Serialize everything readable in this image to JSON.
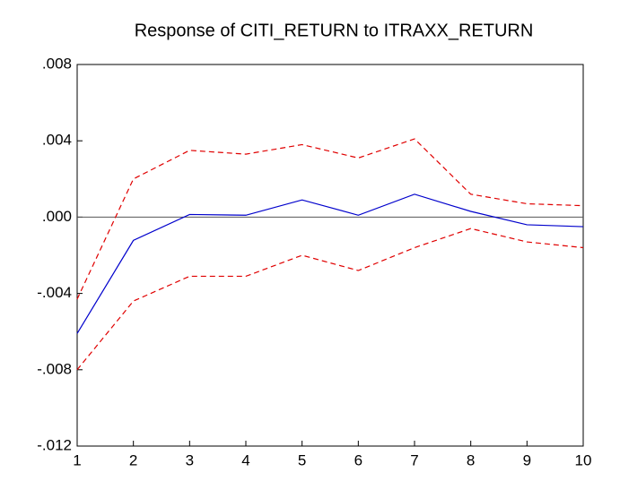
{
  "chart_data": {
    "type": "line",
    "title": "Response of CITI_RETURN to ITRAXX_RETURN",
    "x": [
      1,
      2,
      3,
      4,
      5,
      6,
      7,
      8,
      9,
      10
    ],
    "series": [
      {
        "color": "#0000cc",
        "dash": "solid",
        "values": [
          -0.0061,
          -0.00122,
          0.00014,
          0.0001,
          0.0009,
          0.0001,
          0.0012,
          0.0003,
          -0.0004,
          -0.0005
        ]
      },
      {
        "color": "#e00000",
        "dash": "dashed",
        "values": [
          -0.0043,
          0.002,
          0.0035,
          0.0033,
          0.0038,
          0.0031,
          0.0041,
          0.0012,
          0.0007,
          0.0006
        ]
      },
      {
        "color": "#e00000",
        "dash": "dashed",
        "values": [
          -0.008,
          -0.0044,
          -0.0031,
          -0.0031,
          -0.002,
          -0.0028,
          -0.0016,
          -0.0006,
          -0.0013,
          -0.0016
        ]
      }
    ],
    "xlim": [
      1,
      10
    ],
    "xticks": [
      1,
      2,
      3,
      4,
      5,
      6,
      7,
      8,
      9,
      10
    ],
    "ylim": [
      -0.012,
      0.008
    ],
    "yticks": [
      {
        "value": -0.012,
        "label": "-.012"
      },
      {
        "value": -0.008,
        "label": "-.008"
      },
      {
        "value": -0.004,
        "label": "-.004"
      },
      {
        "value": 0,
        "label": ".000"
      },
      {
        "value": 0.004,
        "label": ".004"
      },
      {
        "value": 0.008,
        "label": ".008"
      }
    ],
    "zero_line": true
  }
}
